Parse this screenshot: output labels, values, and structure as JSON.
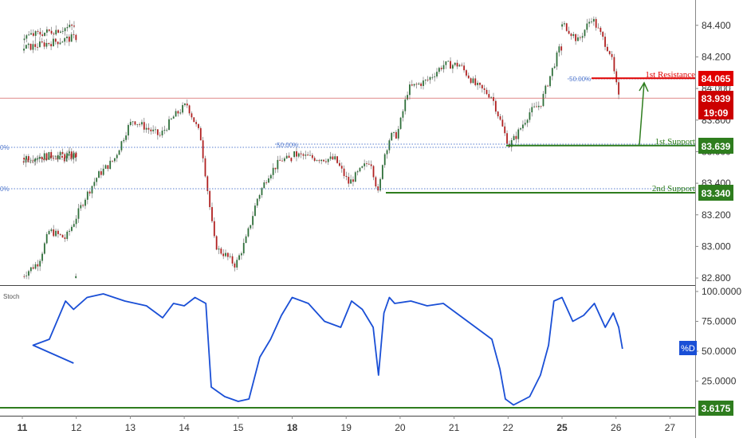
{
  "chart_data": [
    {
      "type": "candlestick",
      "title": "",
      "x_ticks": [
        "11",
        "12",
        "13",
        "14",
        "15",
        "18",
        "19",
        "20",
        "21",
        "22",
        "25",
        "26",
        "27"
      ],
      "bold_ticks": [
        "11",
        "18",
        "25"
      ],
      "y_ticks": [
        "84.400",
        "84.200",
        "84.000",
        "83.800",
        "83.600",
        "83.400",
        "83.200",
        "83.000",
        "82.800"
      ],
      "ylim": [
        82.76,
        84.52
      ],
      "price_path": {
        "x_days": [
          10.95,
          11.3,
          11.5,
          11.8,
          11.95,
          12.15,
          12.4,
          12.7,
          12.95,
          13.05,
          13.3,
          13.55,
          13.8,
          14.05,
          14.3,
          14.55,
          14.62,
          14.75,
          14.95,
          15.15,
          15.35,
          15.55,
          15.8,
          18.05,
          18.4,
          18.8,
          19.05,
          19.45,
          19.6,
          19.68,
          19.82,
          19.92,
          19.98,
          20.15,
          20.5,
          20.8,
          21.1,
          21.4,
          21.7,
          21.95,
          22.02,
          22.15,
          22.4,
          22.6,
          22.75,
          22.95,
          25.05,
          25.3,
          25.55,
          25.75,
          25.9,
          26.05
        ],
        "price": [
          82.8,
          82.9,
          83.1,
          83.05,
          83.15,
          83.3,
          83.45,
          83.55,
          83.75,
          83.8,
          83.75,
          83.7,
          83.82,
          83.9,
          83.7,
          83.05,
          82.98,
          82.95,
          82.88,
          83.05,
          83.3,
          83.45,
          83.55,
          83.58,
          83.56,
          83.55,
          83.4,
          83.55,
          83.32,
          83.55,
          83.7,
          83.7,
          83.75,
          84.0,
          84.05,
          84.15,
          84.15,
          84.02,
          83.95,
          83.7,
          83.64,
          83.7,
          83.85,
          83.9,
          84.05,
          84.25,
          84.4,
          84.3,
          84.45,
          84.32,
          84.22,
          83.94
        ]
      },
      "levels": [
        {
          "label": "1st Resistance",
          "value": "84.065",
          "color": "#e00000"
        },
        {
          "label": "1st Support",
          "value": "83.639",
          "color": "#2e7d1e"
        },
        {
          "label": "2nd Support",
          "value": "83.340",
          "color": "#2e7d1e"
        }
      ],
      "current_price": {
        "value": "83.939",
        "countdown": "19:09",
        "color": "#cc0000"
      },
      "fib_labels": {
        "left_cut": "0%",
        "mid": "50.00%",
        "right": "50.00%"
      },
      "overlap_price_label": "83.900"
    },
    {
      "type": "line",
      "title": "Stoch",
      "series": [
        {
          "name": "%D",
          "color": "#1a4fd6",
          "x_days": [
            10.95,
            11.2,
            11.5,
            11.8,
            11.95,
            12.2,
            12.5,
            12.9,
            13.3,
            13.6,
            13.8,
            14.0,
            14.2,
            14.4,
            14.5,
            14.75,
            15.0,
            15.2,
            15.4,
            15.6,
            15.8,
            18.0,
            18.3,
            18.6,
            18.9,
            19.1,
            19.3,
            19.5,
            19.6,
            19.7,
            19.8,
            19.9,
            20.2,
            20.5,
            20.8,
            21.1,
            21.4,
            21.7,
            21.85,
            21.95,
            22.1,
            22.4,
            22.6,
            22.75,
            22.85,
            25.0,
            25.2,
            25.4,
            25.6,
            25.8,
            25.95,
            26.05,
            26.12
          ],
          "values": [
            40,
            55,
            60,
            92,
            85,
            95,
            98,
            92,
            88,
            78,
            90,
            88,
            95,
            90,
            20,
            12,
            8,
            10,
            45,
            60,
            80,
            95,
            90,
            75,
            70,
            92,
            85,
            70,
            30,
            82,
            95,
            90,
            92,
            88,
            90,
            80,
            70,
            60,
            35,
            10,
            5,
            12,
            30,
            55,
            92,
            95,
            75,
            80,
            90,
            70,
            82,
            70,
            52
          ]
        }
      ],
      "y_ticks": [
        "100.0000",
        "75.0000",
        "50.0000",
        "25.0000"
      ],
      "ylim": [
        0,
        100
      ],
      "d_label": "%D",
      "d_value": "52.0000",
      "baseline_value": "3.6175",
      "baseline_color": "#2e7d1e"
    }
  ]
}
